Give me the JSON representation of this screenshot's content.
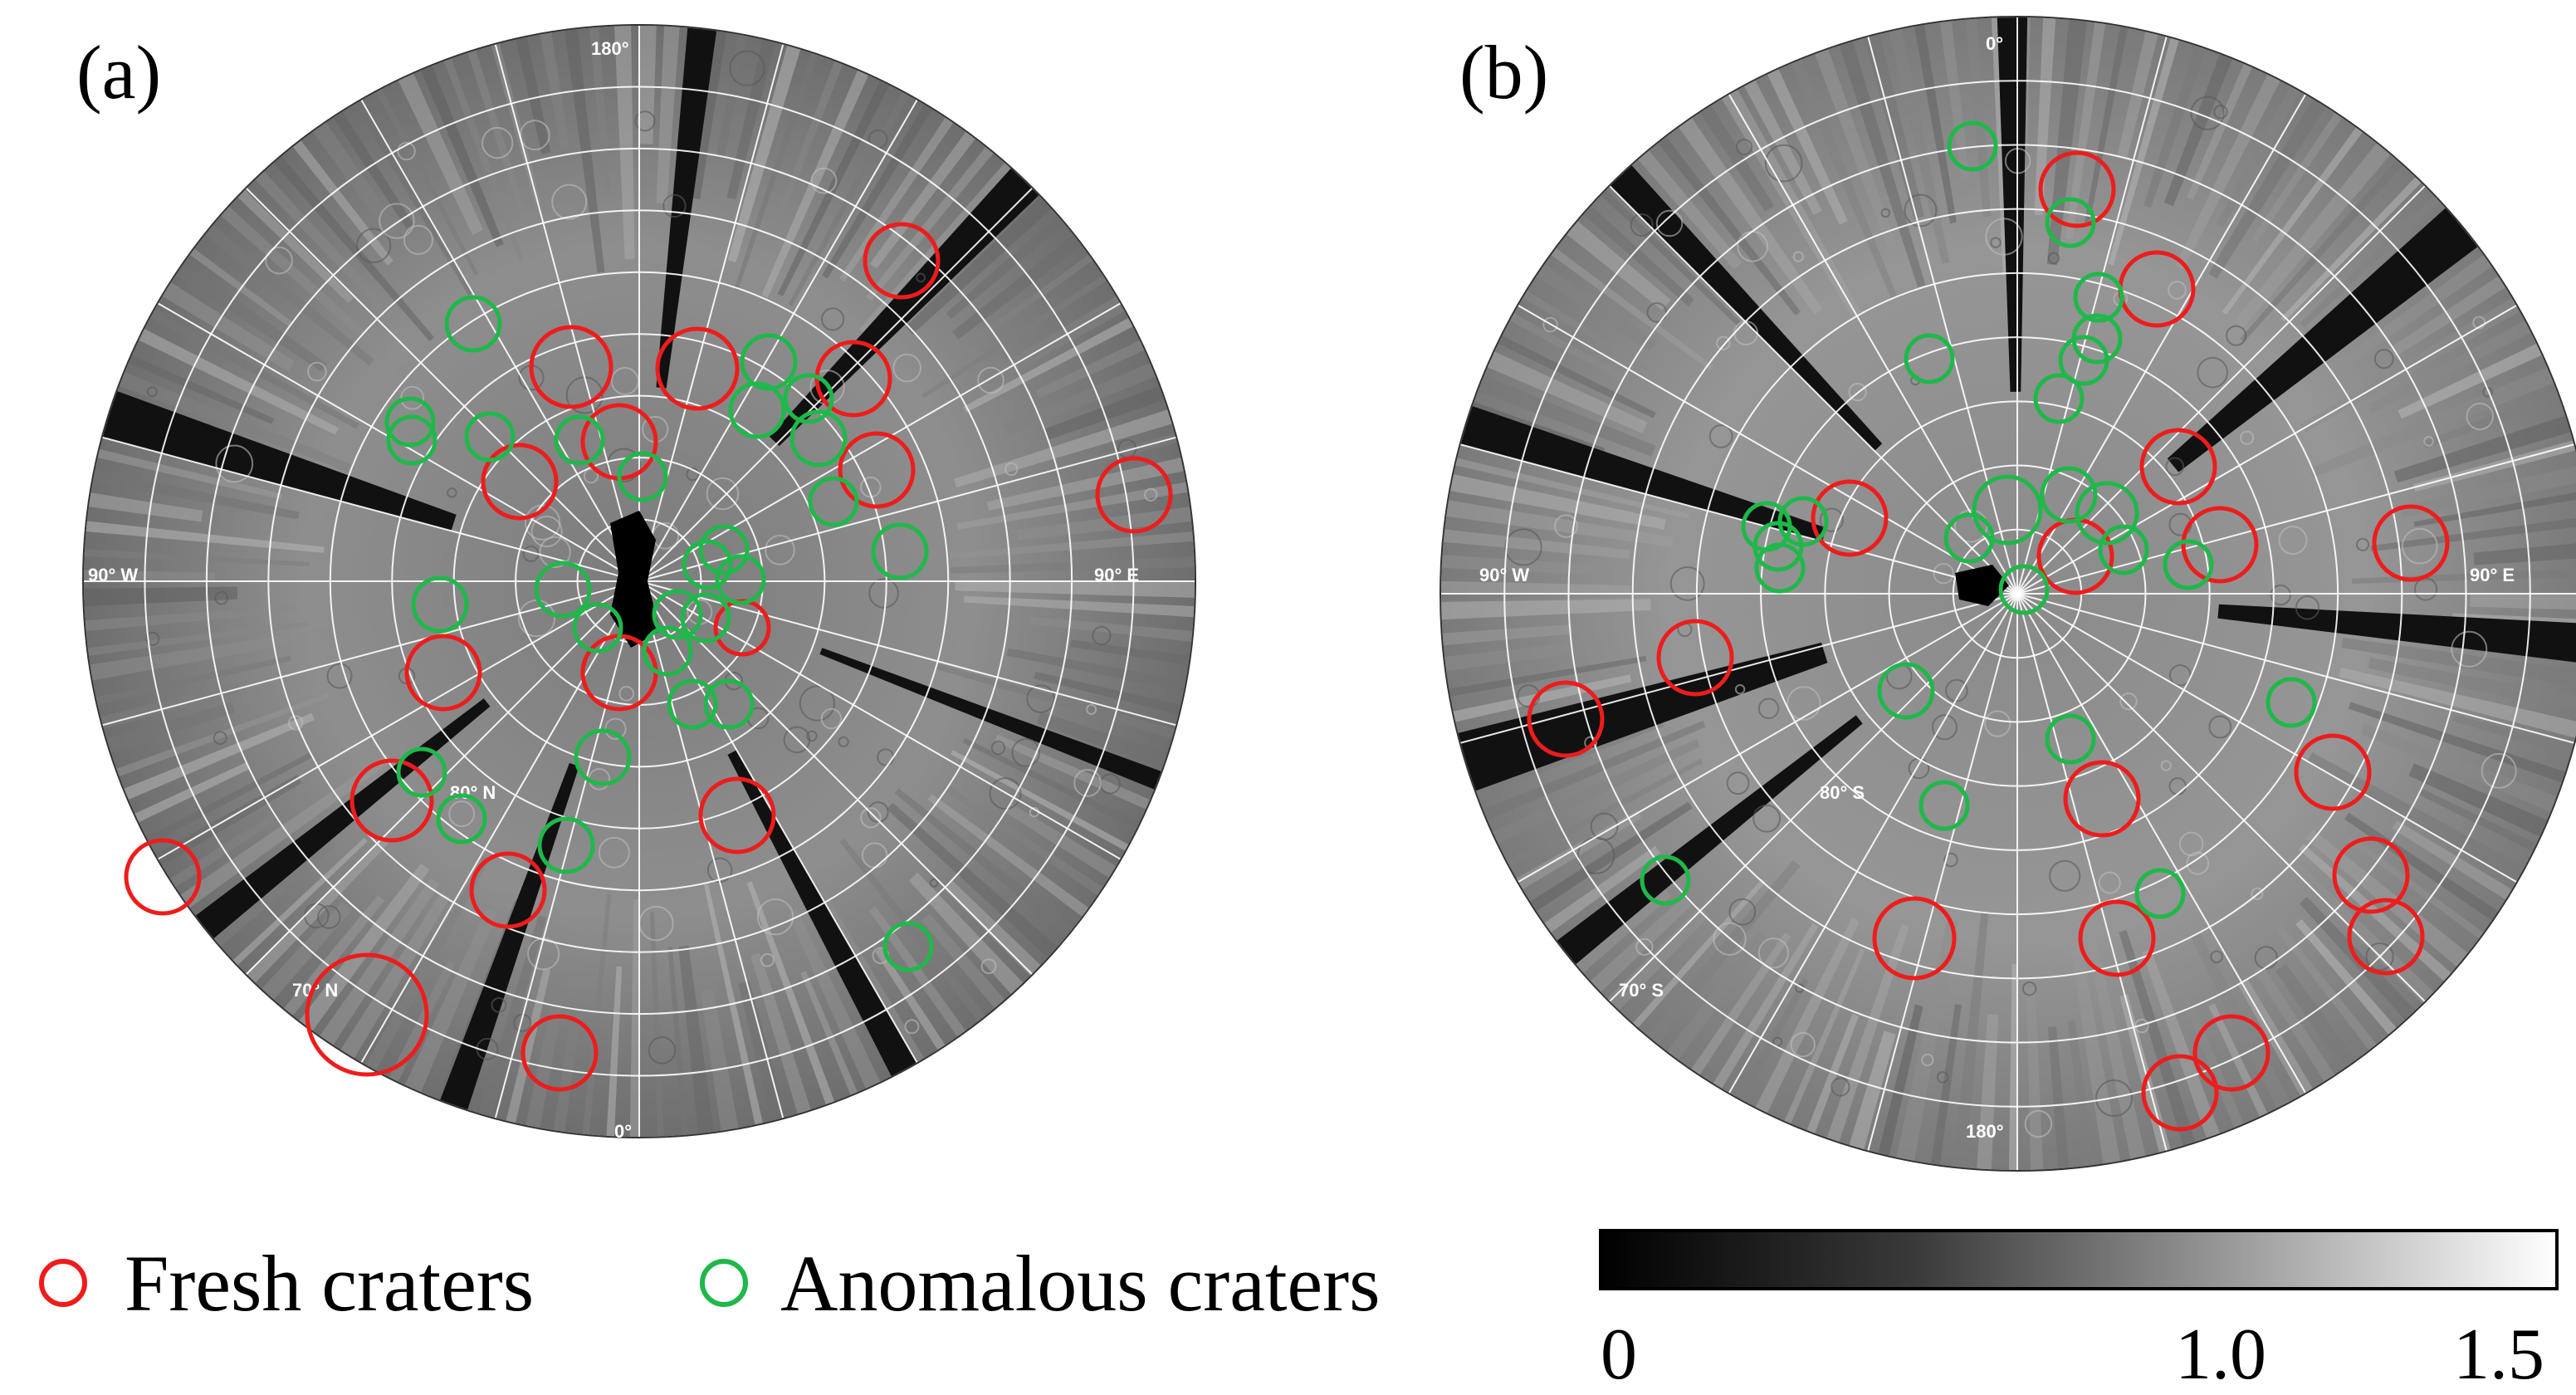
{
  "panels": [
    {
      "id": "a",
      "label": "(a)",
      "hemisphere": "north",
      "lon_labels": {
        "top": "180°",
        "right": "90° E",
        "bottom": "0°",
        "left": "90° W"
      },
      "lat_labels": [
        "80° N",
        "70° N"
      ]
    },
    {
      "id": "b",
      "label": "(b)",
      "hemisphere": "south",
      "lon_labels": {
        "top": "0°",
        "right": "90° E",
        "bottom": "180°",
        "left": "90° W"
      },
      "lat_labels": [
        "80° S",
        "70° S"
      ]
    }
  ],
  "legend": {
    "fresh": {
      "label": "Fresh craters",
      "color": "#ee1c1c"
    },
    "anomalous": {
      "label": "Anomalous craters",
      "color": "#1fb84a"
    }
  },
  "colorbar": {
    "scale": "grayscale",
    "color_min": "#000000",
    "color_max": "#ffffff",
    "ticks": [
      {
        "label": "0",
        "value": 0
      },
      {
        "label": "1.0",
        "value": 1.0
      },
      {
        "label": "1.5",
        "value": 1.5
      }
    ],
    "range": [
      0,
      1.5
    ]
  }
}
